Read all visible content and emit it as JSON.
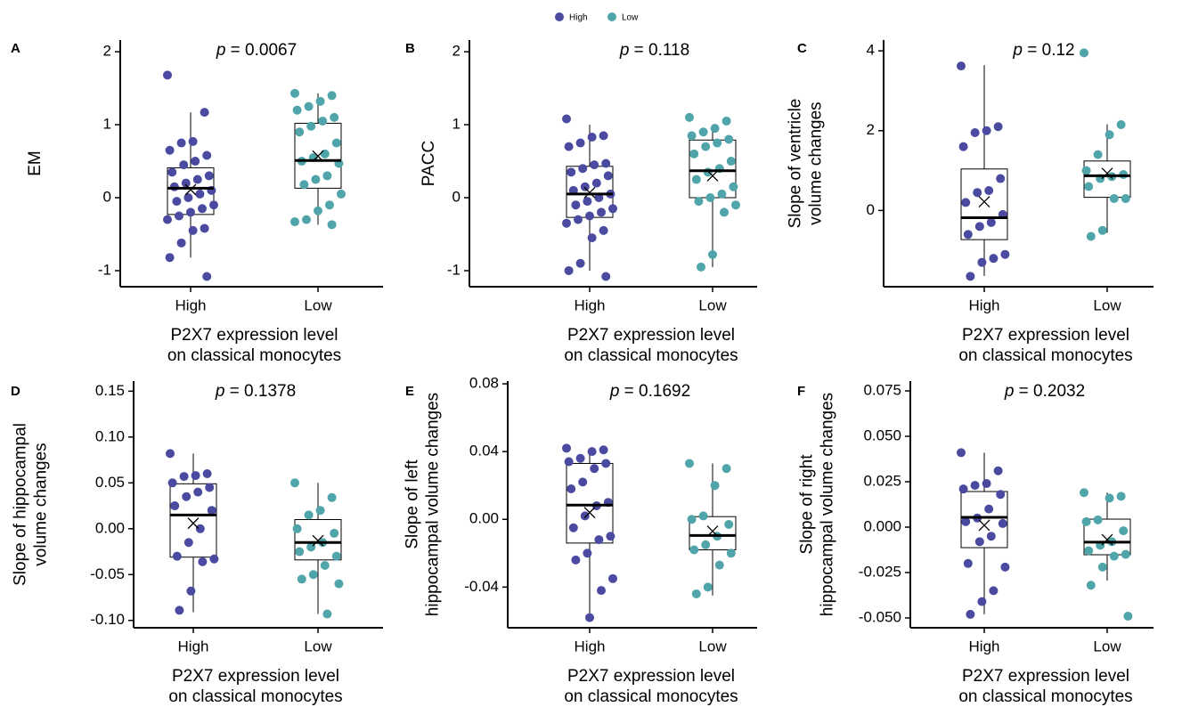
{
  "legend": [
    {
      "name": "High",
      "color": "#4a4aa0"
    },
    {
      "name": "Low",
      "color": "#4fa5aa"
    }
  ],
  "chart_data": [
    {
      "type": "box",
      "panel": "A",
      "ylabel": [
        "EM"
      ],
      "xlabel": [
        "P2X7 expression level",
        "on classical monocytes"
      ],
      "annotation_symbol": "p",
      "annotation": "= 0.0067",
      "categories": [
        "High",
        "Low"
      ],
      "ylim": [
        -1.22,
        2.16
      ],
      "yticks": [
        -1,
        0,
        1,
        2
      ],
      "groups": [
        {
          "color": "#4a4aa0",
          "q1": -0.23,
          "median": 0.13,
          "q3": 0.41,
          "whisker_low": -0.82,
          "whisker_high": 1.17,
          "mean": 0.11,
          "points": [
            1.68,
            1.17,
            0.77,
            0.75,
            0.65,
            0.58,
            0.5,
            0.45,
            0.35,
            0.3,
            0.25,
            0.2,
            0.15,
            0.1,
            0.05,
            0,
            -0.05,
            -0.1,
            -0.15,
            -0.2,
            -0.25,
            -0.3,
            -0.42,
            -0.45,
            -0.62,
            -0.82,
            -1.08
          ]
        },
        {
          "color": "#4fa5aa",
          "q1": 0.13,
          "median": 0.51,
          "q3": 1.02,
          "whisker_low": -0.37,
          "whisker_high": 1.43,
          "mean": 0.57,
          "points": [
            1.43,
            1.4,
            1.32,
            1.25,
            1.2,
            1.1,
            1.05,
            0.98,
            0.9,
            0.75,
            0.6,
            0.55,
            0.5,
            0.47,
            0.3,
            0.25,
            0.18,
            0.05,
            -0.1,
            -0.18,
            -0.3,
            -0.33,
            -0.37
          ]
        }
      ]
    },
    {
      "type": "box",
      "panel": "B",
      "ylabel": [
        "PACC"
      ],
      "xlabel": [
        "P2X7 expression level",
        "on classical monocytes"
      ],
      "annotation_symbol": "p",
      "annotation": "= 0.118",
      "categories": [
        "High",
        "Low"
      ],
      "ylim": [
        -1.22,
        2.16
      ],
      "yticks": [
        -1,
        0,
        1,
        2
      ],
      "groups": [
        {
          "color": "#4a4aa0",
          "q1": -0.27,
          "median": 0.05,
          "q3": 0.43,
          "whisker_low": -1.0,
          "whisker_high": 1.0,
          "mean": 0.07,
          "points": [
            1.08,
            0.85,
            0.83,
            0.75,
            0.7,
            0.47,
            0.45,
            0.4,
            0.35,
            0.3,
            0.2,
            0.15,
            0.1,
            0.05,
            0,
            -0.05,
            -0.1,
            -0.15,
            -0.2,
            -0.25,
            -0.3,
            -0.35,
            -0.45,
            -0.55,
            -0.9,
            -1.0,
            -1.08
          ]
        },
        {
          "color": "#4fa5aa",
          "q1": 0.0,
          "median": 0.37,
          "q3": 0.79,
          "whisker_low": -0.95,
          "whisker_high": 1.0,
          "mean": 0.3,
          "points": [
            1.1,
            1.05,
            0.95,
            0.9,
            0.85,
            0.8,
            0.75,
            0.7,
            0.6,
            0.5,
            0.4,
            0.35,
            0.25,
            0.15,
            0.05,
            0,
            -0.05,
            -0.1,
            -0.2,
            -0.78,
            -0.95
          ]
        }
      ]
    },
    {
      "type": "box",
      "panel": "C",
      "ylabel": [
        "Slope of ventricle",
        "volume changes"
      ],
      "xlabel": [
        "P2X7 expression level",
        "on classical monocytes"
      ],
      "annotation_symbol": "p",
      "annotation": "= 0.12",
      "categories": [
        "High",
        "Low"
      ],
      "ylim": [
        -1.91,
        4.27
      ],
      "yticks": [
        0,
        2,
        4
      ],
      "groups": [
        {
          "color": "#4a4aa0",
          "q1": -0.73,
          "median": -0.18,
          "q3": 1.04,
          "whisker_low": -1.64,
          "whisker_high": 3.64,
          "mean": 0.22,
          "points": [
            3.62,
            2.1,
            2.0,
            1.95,
            1.6,
            0.8,
            0.5,
            0.45,
            0.2,
            -0.1,
            -0.3,
            -0.4,
            -0.6,
            -1.1,
            -1.2,
            -1.3,
            -1.65
          ]
        },
        {
          "color": "#4fa5aa",
          "q1": 0.33,
          "median": 0.87,
          "q3": 1.24,
          "whisker_low": -0.56,
          "whisker_high": 2.16,
          "mean": 0.93,
          "points": [
            3.95,
            2.15,
            1.9,
            1.4,
            1.0,
            0.9,
            0.85,
            0.8,
            0.6,
            0.3,
            0.3,
            -0.5,
            -0.65
          ]
        }
      ]
    },
    {
      "type": "box",
      "panel": "D",
      "ylabel": [
        "Slope of hippocampal",
        "volume changes"
      ],
      "xlabel": [
        "P2X7 expression level",
        "on classical monocytes"
      ],
      "annotation_symbol": "p",
      "annotation": "= 0.1378",
      "categories": [
        "High",
        "Low"
      ],
      "ylim": [
        -0.108,
        0.161
      ],
      "yticks": [
        {
          "value": -0.1,
          "label": "-0.10"
        },
        -0.05,
        {
          "value": 0,
          "label": "0.00"
        },
        0.05,
        {
          "value": 0.1,
          "label": "0.10"
        },
        0.15
      ],
      "groups": [
        {
          "color": "#4a4aa0",
          "q1": -0.031,
          "median": 0.015,
          "q3": 0.049,
          "whisker_low": -0.091,
          "whisker_high": 0.082,
          "mean": 0.006,
          "points": [
            0.082,
            0.06,
            0.058,
            0.057,
            0.05,
            0.045,
            0.04,
            0.035,
            0.025,
            0.02,
            0.0,
            -0.015,
            -0.03,
            -0.033,
            -0.036,
            -0.068,
            -0.089
          ]
        },
        {
          "color": "#4fa5aa",
          "q1": -0.034,
          "median": -0.015,
          "q3": 0.01,
          "whisker_low": -0.093,
          "whisker_high": 0.05,
          "mean": -0.013,
          "points": [
            0.05,
            0.034,
            0.02,
            0.015,
            0.0,
            -0.005,
            -0.015,
            -0.02,
            -0.025,
            -0.03,
            -0.04,
            -0.05,
            -0.055,
            -0.06,
            -0.093
          ]
        }
      ]
    },
    {
      "type": "box",
      "panel": "E",
      "ylabel": [
        "Slope of left",
        "hippocampal volume changes"
      ],
      "xlabel": [
        "P2X7 expression level",
        "on classical monocytes"
      ],
      "annotation_symbol": "p",
      "annotation": "= 0.1692",
      "categories": [
        "High",
        "Low"
      ],
      "ylim": [
        -0.064,
        0.0816
      ],
      "yticks": [
        -0.04,
        {
          "value": 0,
          "label": "0.00"
        },
        0.04,
        0.08
      ],
      "groups": [
        {
          "color": "#4a4aa0",
          "q1": -0.014,
          "median": 0.0084,
          "q3": 0.033,
          "whisker_low": -0.058,
          "whisker_high": 0.041,
          "mean": 0.004,
          "points": [
            0.042,
            0.041,
            0.04,
            0.036,
            0.034,
            0.033,
            0.03,
            0.022,
            0.018,
            0.01,
            0.008,
            0.002,
            -0.005,
            -0.01,
            -0.012,
            -0.02,
            -0.024,
            -0.035,
            -0.042,
            -0.058
          ]
        },
        {
          "color": "#4fa5aa",
          "q1": -0.018,
          "median": -0.0095,
          "q3": 0.0016,
          "whisker_low": -0.045,
          "whisker_high": 0.033,
          "mean": -0.007,
          "points": [
            0.033,
            0.03,
            0.02,
            0.002,
            0.0,
            -0.003,
            -0.01,
            -0.015,
            -0.018,
            -0.02,
            -0.027,
            -0.04,
            -0.044
          ]
        }
      ]
    },
    {
      "type": "box",
      "panel": "F",
      "ylabel": [
        "Slope of right",
        "hippocampal volume changes"
      ],
      "xlabel": [
        "P2X7 expression level",
        "on classical monocytes"
      ],
      "annotation_symbol": "p",
      "annotation": "= 0.2032",
      "categories": [
        "High",
        "Low"
      ],
      "ylim": [
        -0.0554,
        0.0804
      ],
      "yticks": [
        {
          "value": -0.05,
          "label": "-0.050"
        },
        -0.025,
        {
          "value": 0,
          "label": "0.000"
        },
        0.025,
        {
          "value": 0.05,
          "label": "0.050"
        },
        0.075
      ],
      "groups": [
        {
          "color": "#4a4aa0",
          "q1": -0.0113,
          "median": 0.0054,
          "q3": 0.0196,
          "whisker_low": -0.048,
          "whisker_high": 0.041,
          "mean": 0.001,
          "points": [
            0.041,
            0.031,
            0.024,
            0.023,
            0.021,
            0.018,
            0.01,
            0.005,
            0.003,
            0.002,
            -0.005,
            -0.008,
            -0.02,
            -0.022,
            -0.035,
            -0.041,
            -0.048
          ]
        },
        {
          "color": "#4fa5aa",
          "q1": -0.0152,
          "median": -0.0083,
          "q3": 0.0044,
          "whisker_low": -0.0294,
          "whisker_high": 0.019,
          "mean": -0.0069,
          "points": [
            0.019,
            0.017,
            0.016,
            0.004,
            0.003,
            -0.002,
            -0.008,
            -0.01,
            -0.013,
            -0.015,
            -0.016,
            -0.022,
            -0.032,
            -0.049
          ]
        }
      ]
    }
  ]
}
